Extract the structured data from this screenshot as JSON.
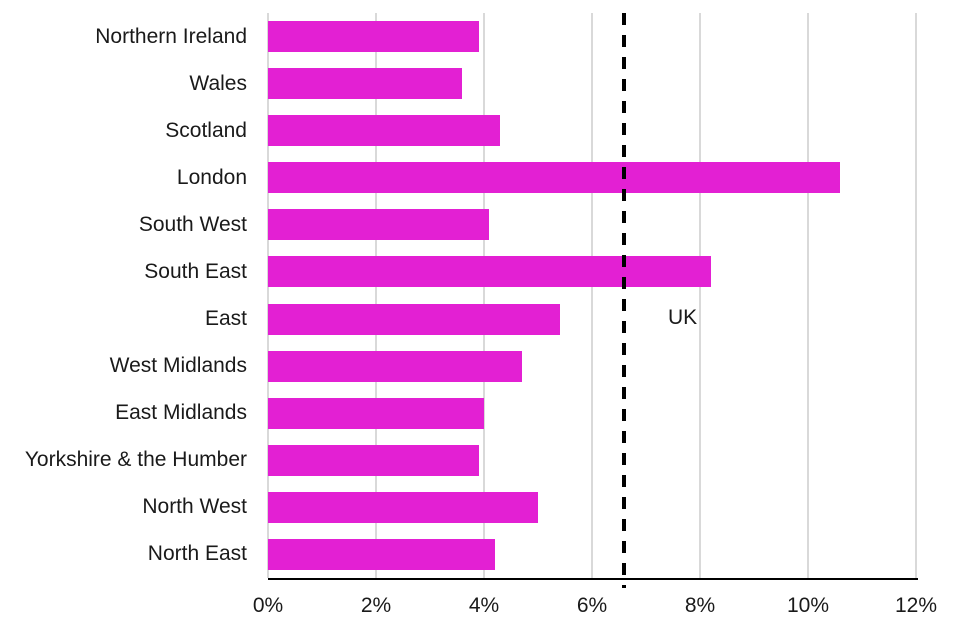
{
  "chart_data": {
    "type": "bar",
    "orientation": "horizontal",
    "categories": [
      "Northern Ireland",
      "Wales",
      "Scotland",
      "London",
      "South West",
      "South East",
      "East",
      "West Midlands",
      "East Midlands",
      "Yorkshire & the Humber",
      "North West",
      "North East"
    ],
    "values": [
      3.9,
      3.6,
      4.3,
      10.6,
      4.1,
      8.2,
      5.4,
      4.7,
      4.0,
      3.9,
      5.0,
      4.2
    ],
    "unit": "%",
    "xlim": [
      0,
      12
    ],
    "x_ticks": [
      0,
      2,
      4,
      6,
      8,
      10,
      12
    ],
    "x_tick_labels": [
      "0%",
      "2%",
      "4%",
      "6%",
      "8%",
      "10%",
      "12%"
    ],
    "grid": "vertical",
    "legend": "none",
    "reference_line": {
      "value": 6.6,
      "label": "UK",
      "style": "dashed",
      "color": "#000000"
    },
    "colors": {
      "bar": "#E320D3",
      "gridline": "#D9D9D9",
      "axis": "#000000",
      "text": "#1A1A1A"
    }
  }
}
